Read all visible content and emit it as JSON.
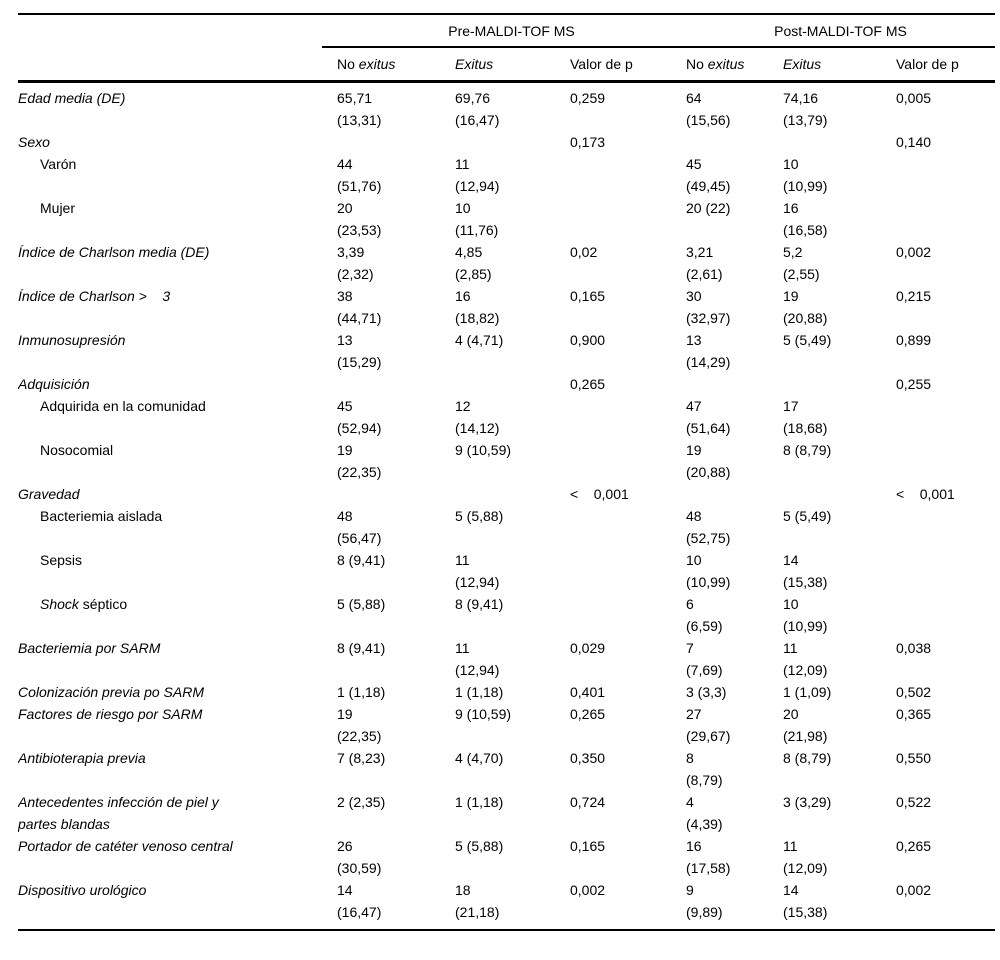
{
  "table": {
    "group_headers": [
      "Pre-MALDI-TOF MS",
      "Post-MALDI-TOF MS"
    ],
    "sub_headers": [
      [
        {
          "t": "No ",
          "i": false
        },
        {
          "t": "exitus",
          "i": true
        }
      ],
      [
        {
          "t": "Exitus",
          "i": true
        }
      ],
      [
        {
          "t": "Valor de p",
          "i": false
        }
      ],
      [
        {
          "t": "No ",
          "i": false
        },
        {
          "t": "exitus",
          "i": true
        }
      ],
      [
        {
          "t": "Exitus",
          "i": true
        }
      ],
      [
        {
          "t": "Valor de p",
          "i": false
        }
      ]
    ],
    "rows": [
      {
        "label": [
          {
            "t": "Edad media (DE)",
            "i": true
          }
        ],
        "indent": false,
        "cells": [
          "65,71\n(13,31)",
          "69,76\n(16,47)",
          "0,259",
          "64\n(15,56)",
          "74,16\n(13,79)",
          "0,005"
        ]
      },
      {
        "label": [
          {
            "t": "Sexo",
            "i": true
          }
        ],
        "indent": false,
        "cells": [
          "",
          "",
          "0,173",
          "",
          "",
          "0,140"
        ]
      },
      {
        "label": [
          {
            "t": "Varón",
            "i": false
          }
        ],
        "indent": true,
        "cells": [
          "44\n(51,76)",
          "11\n(12,94)",
          "",
          "45\n(49,45)",
          "10\n(10,99)",
          ""
        ]
      },
      {
        "label": [
          {
            "t": "Mujer",
            "i": false
          }
        ],
        "indent": true,
        "cells": [
          "20\n(23,53)",
          "10\n(11,76)",
          "",
          "20 (22)",
          "16\n(16,58)",
          ""
        ]
      },
      {
        "label": [
          {
            "t": "Índice de Charlson media (DE)",
            "i": true
          }
        ],
        "indent": false,
        "cells": [
          "3,39\n(2,32)",
          "4,85\n(2,85)",
          "0,02",
          "3,21\n(2,61)",
          "5,2\n(2,55)",
          "0,002"
        ]
      },
      {
        "label": [
          {
            "t": "Índice de Charlson >    3",
            "i": true
          }
        ],
        "indent": false,
        "cells": [
          "38\n(44,71)",
          "16\n(18,82)",
          "0,165",
          "30\n(32,97)",
          "19\n(20,88)",
          "0,215"
        ]
      },
      {
        "label": [
          {
            "t": "Inmunosupresión",
            "i": true
          }
        ],
        "indent": false,
        "cells": [
          "13\n(15,29)",
          "4 (4,71)",
          "0,900",
          "13\n(14,29)",
          "5 (5,49)",
          "0,899"
        ]
      },
      {
        "label": [
          {
            "t": "Adquisición",
            "i": true
          }
        ],
        "indent": false,
        "cells": [
          "",
          "",
          "0,265",
          "",
          "",
          "0,255"
        ]
      },
      {
        "label": [
          {
            "t": "Adquirida en la comunidad",
            "i": false
          }
        ],
        "indent": true,
        "cells": [
          "45\n(52,94)",
          "12\n(14,12)",
          "",
          "47\n(51,64)",
          "17\n(18,68)",
          ""
        ]
      },
      {
        "label": [
          {
            "t": "Nosocomial",
            "i": false
          }
        ],
        "indent": true,
        "cells": [
          "19\n(22,35)",
          "9 (10,59)",
          "",
          "19\n(20,88)",
          "8 (8,79)",
          ""
        ]
      },
      {
        "label": [
          {
            "t": "Gravedad",
            "i": true
          }
        ],
        "indent": false,
        "cells": [
          "",
          "",
          "<    0,001",
          "",
          "",
          "<    0,001"
        ]
      },
      {
        "label": [
          {
            "t": "Bacteriemia aislada",
            "i": false
          }
        ],
        "indent": true,
        "cells": [
          "48\n(56,47)",
          "5 (5,88)",
          "",
          "48\n(52,75)",
          "5 (5,49)",
          ""
        ]
      },
      {
        "label": [
          {
            "t": "Sepsis",
            "i": false
          }
        ],
        "indent": true,
        "cells": [
          "8 (9,41)",
          "11\n(12,94)",
          "",
          "10\n(10,99)",
          "14\n(15,38)",
          ""
        ]
      },
      {
        "label": [
          {
            "t": "Shock",
            "i": true
          },
          {
            "t": " séptico",
            "i": false
          }
        ],
        "indent": true,
        "cells": [
          "5 (5,88)",
          "8 (9,41)",
          "",
          "6\n(6,59)",
          "10\n(10,99)",
          ""
        ]
      },
      {
        "label": [
          {
            "t": "Bacteriemia por SARM",
            "i": true
          }
        ],
        "indent": false,
        "cells": [
          "8 (9,41)",
          "11\n(12,94)",
          "0,029",
          "7\n(7,69)",
          "11\n(12,09)",
          "0,038"
        ]
      },
      {
        "label": [
          {
            "t": "Colonización previa po SARM",
            "i": true
          }
        ],
        "indent": false,
        "cells": [
          "1 (1,18)",
          "1 (1,18)",
          "0,401",
          "3 (3,3)",
          "1 (1,09)",
          "0,502"
        ]
      },
      {
        "label": [
          {
            "t": "Factores de riesgo por SARM",
            "i": true
          }
        ],
        "indent": false,
        "cells": [
          "19\n(22,35)",
          "9 (10,59)",
          "0,265",
          "27\n(29,67)",
          "20\n(21,98)",
          "0,365"
        ]
      },
      {
        "label": [
          {
            "t": "Antibioterapia previa",
            "i": true
          }
        ],
        "indent": false,
        "cells": [
          "7 (8,23)",
          "4 (4,70)",
          "0,350",
          "8\n(8,79)",
          "8 (8,79)",
          "0,550"
        ]
      },
      {
        "label": [
          {
            "t": "Antecedentes infección de piel y\npartes blandas",
            "i": true
          }
        ],
        "indent": false,
        "cells": [
          "2 (2,35)",
          "1 (1,18)",
          "0,724",
          "4\n(4,39)",
          "3 (3,29)",
          "0,522"
        ]
      },
      {
        "label": [
          {
            "t": "Portador de catéter venoso central",
            "i": true
          }
        ],
        "indent": false,
        "cells": [
          "26\n(30,59)",
          "5 (5,88)",
          "0,165",
          "16\n(17,58)",
          "11\n(12,09)",
          "0,265"
        ]
      },
      {
        "label": [
          {
            "t": "Dispositivo urológico",
            "i": true
          }
        ],
        "indent": false,
        "cells": [
          "14\n(16,47)",
          "18\n(21,18)",
          "0,002",
          "9\n(9,89)",
          "14\n(15,38)",
          "0,002"
        ]
      }
    ]
  }
}
